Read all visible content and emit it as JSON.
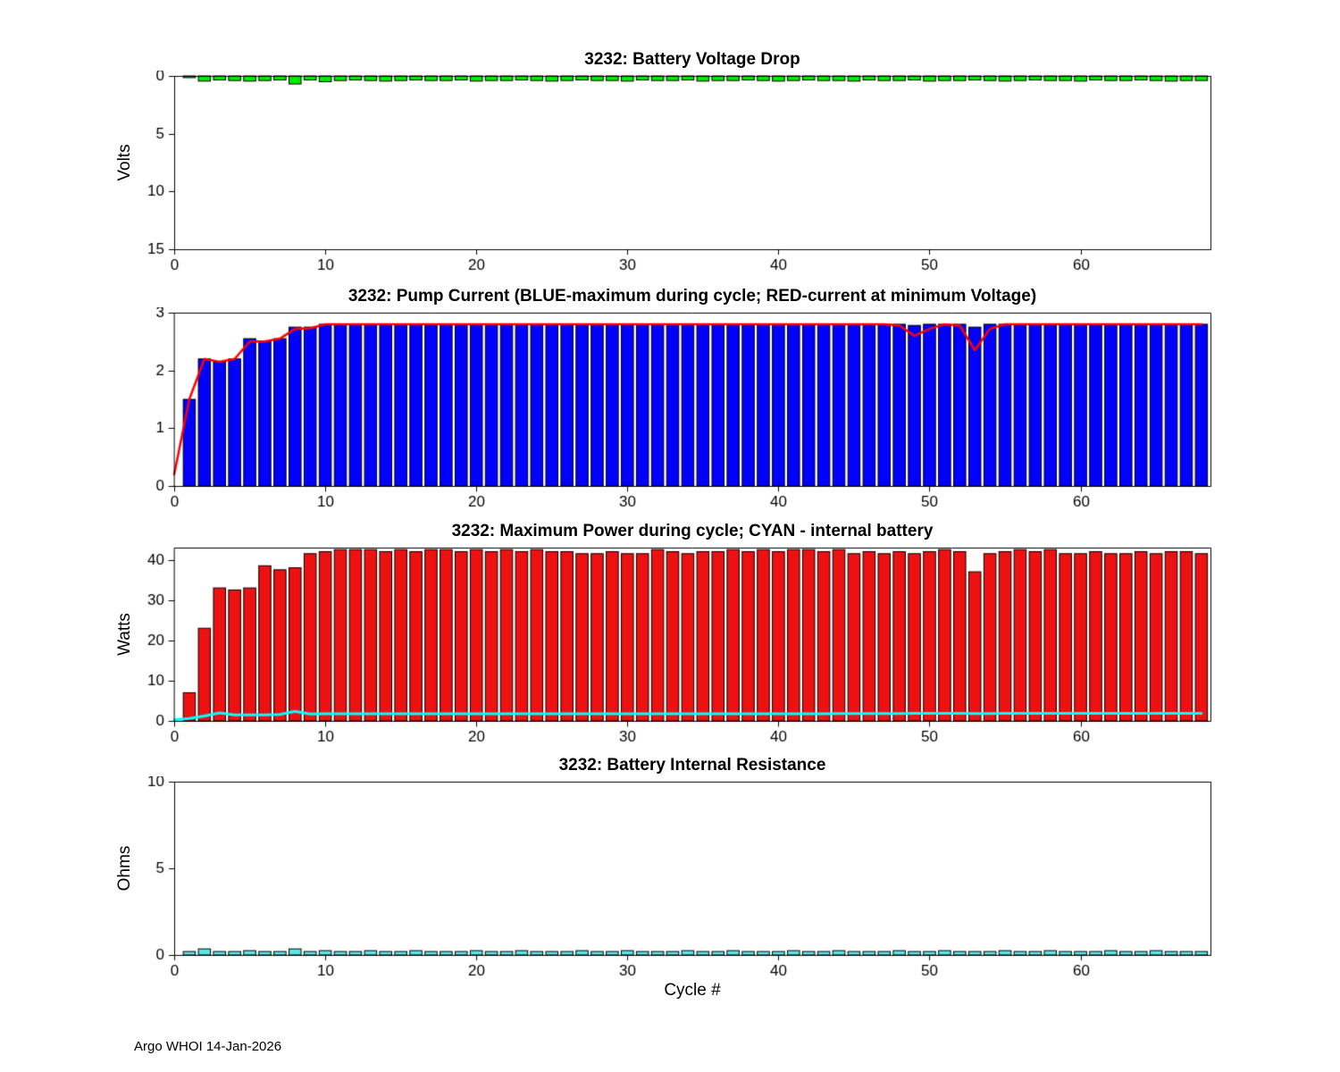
{
  "footer": "Argo WHOI 14-Jan-2026",
  "chart_data": [
    {
      "type": "bar",
      "title": "3232: Battery Voltage Drop",
      "ylabel": "Volts",
      "xlabel": "",
      "bar_color": "#00ee00",
      "reversed": true,
      "xlim": [
        0,
        68.6
      ],
      "ylim": [
        0,
        15
      ],
      "xticks": [
        0,
        10,
        20,
        30,
        40,
        50,
        60
      ],
      "yticks": [
        0,
        5,
        10,
        15
      ],
      "values": [
        0.15,
        0.45,
        0.35,
        0.4,
        0.45,
        0.4,
        0.35,
        0.7,
        0.35,
        0.5,
        0.4,
        0.35,
        0.4,
        0.45,
        0.4,
        0.35,
        0.4,
        0.4,
        0.35,
        0.45,
        0.4,
        0.4,
        0.35,
        0.4,
        0.45,
        0.4,
        0.35,
        0.4,
        0.4,
        0.45,
        0.35,
        0.4,
        0.4,
        0.35,
        0.45,
        0.4,
        0.4,
        0.35,
        0.4,
        0.45,
        0.4,
        0.35,
        0.4,
        0.4,
        0.45,
        0.35,
        0.4,
        0.4,
        0.35,
        0.45,
        0.4,
        0.4,
        0.35,
        0.4,
        0.45,
        0.4,
        0.35,
        0.4,
        0.4,
        0.45,
        0.35,
        0.4,
        0.4,
        0.35,
        0.4,
        0.45,
        0.4,
        0.4
      ]
    },
    {
      "type": "bar",
      "title": "3232: Pump Current (BLUE-maximum during cycle; RED-current at minimum Voltage)",
      "ylabel": "",
      "xlabel": "",
      "bar_color": "#0000ff",
      "reversed": false,
      "xlim": [
        0,
        68.6
      ],
      "ylim": [
        0,
        3
      ],
      "xticks": [
        0,
        10,
        20,
        30,
        40,
        50,
        60
      ],
      "yticks": [
        0,
        1,
        2,
        3
      ],
      "values": [
        1.5,
        2.2,
        2.15,
        2.2,
        2.55,
        2.5,
        2.55,
        2.75,
        2.75,
        2.8,
        2.8,
        2.8,
        2.8,
        2.8,
        2.8,
        2.8,
        2.8,
        2.8,
        2.8,
        2.8,
        2.8,
        2.8,
        2.8,
        2.8,
        2.8,
        2.8,
        2.8,
        2.8,
        2.8,
        2.8,
        2.8,
        2.8,
        2.8,
        2.8,
        2.8,
        2.8,
        2.8,
        2.8,
        2.8,
        2.8,
        2.8,
        2.8,
        2.8,
        2.8,
        2.8,
        2.8,
        2.8,
        2.8,
        2.78,
        2.8,
        2.8,
        2.8,
        2.75,
        2.8,
        2.8,
        2.8,
        2.8,
        2.8,
        2.8,
        2.8,
        2.8,
        2.8,
        2.8,
        2.8,
        2.8,
        2.8,
        2.8,
        2.8
      ],
      "line": {
        "name": "current-at-minimum-voltage",
        "color": "#ff0000",
        "width": 2.5,
        "x0": 0,
        "y": [
          0.2,
          1.5,
          2.2,
          2.15,
          2.2,
          2.5,
          2.5,
          2.55,
          2.72,
          2.73,
          2.8,
          2.8,
          2.8,
          2.8,
          2.8,
          2.8,
          2.8,
          2.8,
          2.8,
          2.8,
          2.8,
          2.8,
          2.8,
          2.8,
          2.8,
          2.8,
          2.8,
          2.8,
          2.8,
          2.8,
          2.8,
          2.8,
          2.8,
          2.8,
          2.8,
          2.8,
          2.8,
          2.8,
          2.8,
          2.8,
          2.8,
          2.8,
          2.8,
          2.8,
          2.8,
          2.8,
          2.8,
          2.8,
          2.78,
          2.6,
          2.72,
          2.8,
          2.78,
          2.35,
          2.72,
          2.8,
          2.8,
          2.8,
          2.8,
          2.8,
          2.8,
          2.8,
          2.8,
          2.8,
          2.8,
          2.8,
          2.8,
          2.8,
          2.8
        ]
      }
    },
    {
      "type": "bar",
      "title": "3232: Maximum Power during cycle; CYAN - internal battery",
      "ylabel": "Watts",
      "xlabel": "",
      "bar_color": "#ee1111",
      "reversed": false,
      "xlim": [
        0,
        68.6
      ],
      "ylim": [
        0,
        43
      ],
      "xticks": [
        0,
        10,
        20,
        30,
        40,
        50,
        60
      ],
      "yticks": [
        0,
        10,
        20,
        30,
        40
      ],
      "values": [
        7,
        23,
        33,
        32.5,
        33,
        38.5,
        37.5,
        38,
        41.5,
        42,
        42.5,
        42.5,
        42.5,
        42,
        42.5,
        42,
        42.5,
        42.5,
        42,
        42.5,
        42,
        42.5,
        42,
        42.5,
        42,
        42,
        41.5,
        41.5,
        42,
        41.5,
        41.5,
        42.5,
        42,
        41.5,
        42,
        42,
        42.5,
        42,
        42.5,
        42,
        42.5,
        42.5,
        42,
        42.5,
        41.5,
        42,
        41.5,
        42,
        41.5,
        42,
        42.5,
        42,
        37,
        41.5,
        42,
        42.5,
        42,
        42.5,
        41.5,
        41.5,
        42,
        41.5,
        41.5,
        42,
        41.5,
        42,
        42,
        41.5
      ],
      "line": {
        "name": "internal-battery-power",
        "color": "#00ffff",
        "width": 3,
        "x0": 0,
        "y": [
          0.3,
          0.6,
          1.2,
          2.0,
          1.5,
          1.5,
          1.5,
          1.6,
          2.4,
          1.7,
          1.8,
          1.8,
          1.8,
          1.8,
          1.8,
          1.8,
          1.8,
          1.8,
          1.8,
          1.8,
          1.8,
          1.8,
          1.8,
          1.8,
          1.8,
          1.8,
          1.8,
          1.8,
          1.8,
          1.8,
          1.8,
          1.8,
          1.8,
          1.8,
          1.8,
          1.8,
          1.8,
          1.8,
          1.8,
          1.8,
          1.8,
          1.8,
          1.8,
          1.8,
          1.85,
          1.85,
          1.85,
          1.85,
          1.85,
          1.9,
          1.9,
          1.9,
          1.9,
          1.85,
          1.85,
          1.9,
          1.9,
          1.9,
          1.9,
          1.9,
          1.9,
          1.9,
          1.9,
          1.9,
          1.9,
          1.9,
          1.9,
          1.9,
          1.9
        ]
      }
    },
    {
      "type": "bar",
      "title": "3232: Battery Internal Resistance",
      "ylabel": "Ohms",
      "xlabel": "Cycle #",
      "bar_color": "#55e8e8",
      "reversed": false,
      "xlim": [
        0,
        68.6
      ],
      "ylim": [
        0,
        10
      ],
      "xticks": [
        0,
        10,
        20,
        30,
        40,
        50,
        60
      ],
      "yticks": [
        0,
        5,
        10
      ],
      "values": [
        0.2,
        0.35,
        0.2,
        0.2,
        0.25,
        0.2,
        0.2,
        0.35,
        0.2,
        0.25,
        0.2,
        0.2,
        0.25,
        0.2,
        0.2,
        0.25,
        0.2,
        0.2,
        0.2,
        0.25,
        0.2,
        0.2,
        0.25,
        0.2,
        0.2,
        0.2,
        0.25,
        0.2,
        0.2,
        0.25,
        0.2,
        0.2,
        0.2,
        0.25,
        0.2,
        0.2,
        0.25,
        0.2,
        0.2,
        0.2,
        0.25,
        0.2,
        0.2,
        0.25,
        0.2,
        0.2,
        0.2,
        0.25,
        0.2,
        0.2,
        0.25,
        0.2,
        0.2,
        0.2,
        0.25,
        0.2,
        0.2,
        0.25,
        0.2,
        0.2,
        0.2,
        0.25,
        0.2,
        0.2,
        0.25,
        0.2,
        0.2,
        0.2
      ]
    }
  ]
}
